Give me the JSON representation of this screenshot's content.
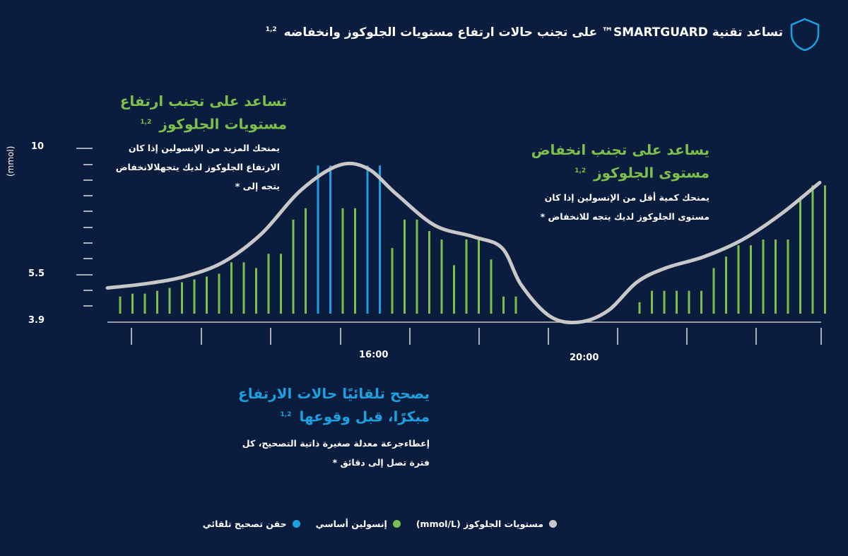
{
  "header": {
    "title": "تساعد تقنية SMARTGUARD™ على تجنب حالات ارتفاع مستويات الجلوكوز وانخفاضه",
    "ref": "1,2"
  },
  "annotations": {
    "high": {
      "title_line1": "تساعد على تجنب ارتفاع",
      "title_line2": "مستويات الجلوكوز",
      "ref": "1,2",
      "body_line1": "يمنحك المزيد من الإنسولين إذا كان",
      "body_line2": "الارتفاع الجلوكوز لديك يتجهلالانخفاض",
      "body_line3": "يتجه إلى *"
    },
    "low": {
      "title_line1": "يساعد على تجنب انخفاض",
      "title_line2": "مستوى الجلوكوز",
      "ref": "1,2",
      "body_line1": "يمنحك كمية أقل من الإنسولين إذا كان",
      "body_line2": "مستوى الجلوكوز لديك يتجه للانخفاض *"
    },
    "correction": {
      "title_line1": "يصحح تلقائيًا حالات الارتفاع",
      "title_line2": "مبكرًا، قبل وقوعها",
      "ref": "1,2",
      "body_line1": "إعطاءجرعة معدلة صغيرة ذاتية التصحيح، كل",
      "body_line2": "فترة تصل إلى دقائق *"
    }
  },
  "legend": {
    "glucose": "مستويات الجلوكوز (mmol/L)",
    "basal": "إنسولين أساسي",
    "auto_correction": "حقن تصحيح تلقائي"
  },
  "colors": {
    "background": "#0b1d3e",
    "glucose": "#c8c8c8",
    "basal": "#7cc04b",
    "auto_correction": "#1ba1e0"
  },
  "chart_data": {
    "type": "line",
    "yunit": "(mmol)",
    "ylim": [
      3.9,
      10
    ],
    "yticks": [
      "10",
      "5.5",
      "3.9"
    ],
    "xticks": [
      "16:00",
      "20:00"
    ],
    "glucose_curve": [
      [
        1,
        5.1
      ],
      [
        3,
        5.25
      ],
      [
        5,
        5.5
      ],
      [
        7,
        6.0
      ],
      [
        9,
        7.0
      ],
      [
        11,
        8.5
      ],
      [
        13,
        9.4
      ],
      [
        14.5,
        9.3
      ],
      [
        16,
        8.4
      ],
      [
        18,
        7.3
      ],
      [
        20,
        6.9
      ],
      [
        21.5,
        6.5
      ],
      [
        22.5,
        5.2
      ],
      [
        24,
        4.1
      ],
      [
        25.5,
        3.9
      ],
      [
        27,
        4.3
      ],
      [
        28.5,
        5.3
      ],
      [
        30,
        5.8
      ],
      [
        32,
        6.2
      ],
      [
        34,
        6.8
      ],
      [
        36,
        7.7
      ],
      [
        38,
        8.8
      ]
    ],
    "basal_bars": [
      4.8,
      4.9,
      4.9,
      5.0,
      5.1,
      5.3,
      5.4,
      5.5,
      5.6,
      6.0,
      6.0,
      5.8,
      6.3,
      6.3,
      7.5,
      7.9,
      null,
      null,
      7.9,
      7.9,
      null,
      null,
      6.5,
      7.5,
      7.5,
      7.1,
      6.8,
      5.9,
      6.8,
      6.8,
      6.1,
      4.8,
      4.8,
      null,
      null,
      null,
      null,
      null,
      null,
      null,
      null,
      null,
      4.6,
      5.0,
      5.0,
      5.0,
      5.0,
      5.0,
      5.8,
      6.2,
      6.6,
      6.6,
      6.8,
      6.8,
      6.8,
      8.3,
      8.7,
      8.7
    ],
    "correction_bars": [
      null,
      null,
      null,
      null,
      null,
      null,
      null,
      null,
      null,
      null,
      null,
      null,
      null,
      null,
      null,
      null,
      9.4,
      9.4,
      null,
      null,
      9.4,
      9.4,
      null,
      null,
      null,
      null,
      null,
      null,
      null,
      null,
      null,
      null,
      null,
      null,
      null,
      null,
      null,
      null,
      null,
      null,
      null,
      null,
      null,
      null,
      null,
      null,
      null,
      null,
      null,
      null,
      null,
      null,
      null,
      null,
      null,
      null,
      null,
      null
    ]
  }
}
